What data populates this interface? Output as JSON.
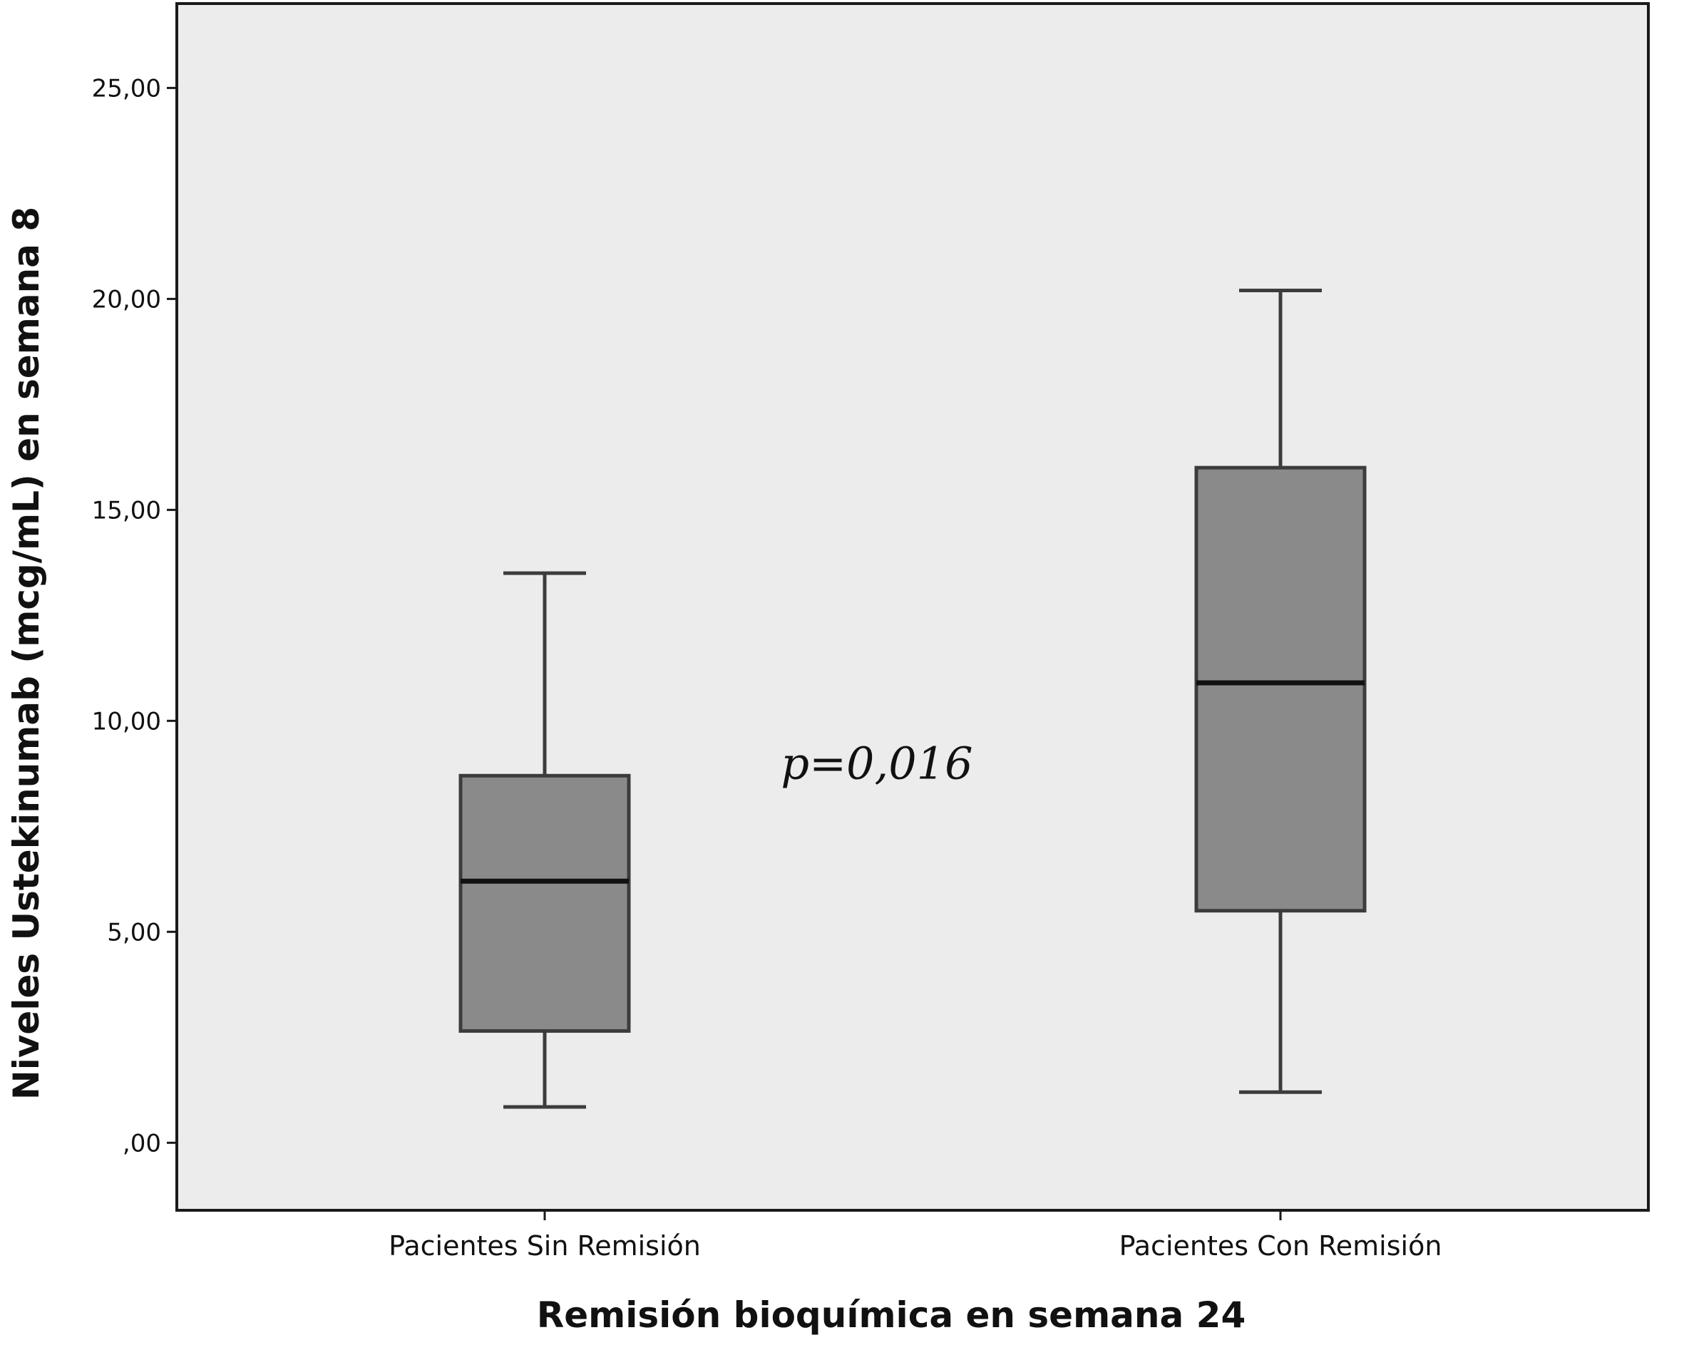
{
  "chart_data": {
    "type": "box",
    "xlabel": "Remisión bioquímica en semana 24",
    "ylabel": "Niveles Ustekinumab (mcg/mL) en semana 8",
    "ylim": [
      -1.6,
      27.0
    ],
    "yticks": [
      0,
      5,
      10,
      15,
      20,
      25
    ],
    "ytick_labels": [
      ",00",
      "5,00",
      "10,00",
      "15,00",
      "20,00",
      "25,00"
    ],
    "categories": [
      "Pacientes Sin Remisión",
      "Pacientes Con Remisión"
    ],
    "boxes": [
      {
        "category": "Pacientes Sin Remisión",
        "whisker_low": 0.85,
        "q1": 2.65,
        "median": 6.2,
        "q3": 8.7,
        "whisker_high": 13.5
      },
      {
        "category": "Pacientes Con Remisión",
        "whisker_low": 1.2,
        "q1": 5.5,
        "median": 10.9,
        "q3": 16.0,
        "whisker_high": 20.2
      }
    ],
    "annotation": "p=0,016",
    "annotation_position": [
      1.5,
      9.0
    ],
    "grid": false,
    "colors": {
      "plot_background": "#ececec",
      "box_fill": "#8a8a8a",
      "line": "#3c3c3c",
      "median": "#111111"
    }
  }
}
